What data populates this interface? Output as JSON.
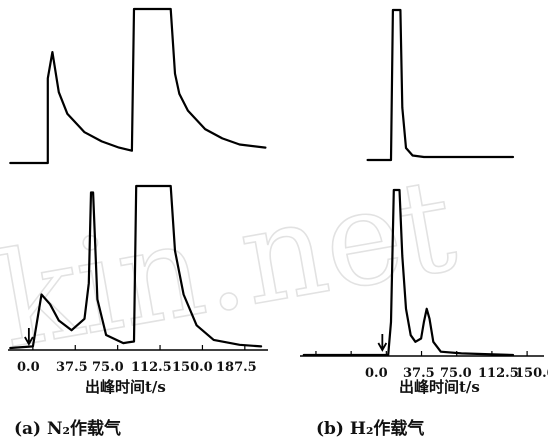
{
  "watermark": "kin.net",
  "chart_data": [
    {
      "type": "line",
      "panel": "a",
      "caption": "(a)   N₂作载气",
      "xlabel": "出峰时间t/s",
      "xticks": [
        "0.0",
        "37.5",
        "75.0",
        "112.5",
        "150.0",
        "187.5"
      ],
      "tick_values": [
        0,
        37.5,
        75,
        112.5,
        150,
        187.5
      ],
      "xlim": [
        -22,
        208
      ],
      "injection_marker_at": 0,
      "grid": false,
      "traces": [
        {
          "position": "top",
          "points": [
            [
              -20,
              0
            ],
            [
              13.2,
              0
            ],
            [
              13.2,
              0.55
            ],
            [
              17.3,
              0.72
            ],
            [
              22.9,
              0.46
            ],
            [
              30.5,
              0.32
            ],
            [
              45.7,
              0.2
            ],
            [
              60.9,
              0.14
            ],
            [
              76.2,
              0.1
            ],
            [
              87.6,
              0.08
            ],
            [
              89.5,
              1
            ],
            [
              121.9,
              1
            ],
            [
              125.7,
              0.58
            ],
            [
              129.5,
              0.45
            ],
            [
              137.1,
              0.34
            ],
            [
              152.4,
              0.22
            ],
            [
              167.6,
              0.16
            ],
            [
              182.9,
              0.12
            ],
            [
              205.7,
              0.1
            ]
          ]
        },
        {
          "position": "bottom",
          "points": [
            [
              -20,
              0
            ],
            [
              0,
              0.01
            ],
            [
              7.6,
              0.33
            ],
            [
              15.2,
              0.27
            ],
            [
              22.9,
              0.17
            ],
            [
              34.3,
              0.11
            ],
            [
              45.7,
              0.18
            ],
            [
              49.5,
              0.4
            ],
            [
              51.4,
              0.96
            ],
            [
              53.3,
              0.96
            ],
            [
              57.1,
              0.3
            ],
            [
              64.8,
              0.08
            ],
            [
              80,
              0.03
            ],
            [
              89.5,
              0.04
            ],
            [
              91.4,
              1
            ],
            [
              121.9,
              1
            ],
            [
              125.7,
              0.6
            ],
            [
              133.3,
              0.33
            ],
            [
              144.8,
              0.14
            ],
            [
              160,
              0.05
            ],
            [
              182.9,
              0.02
            ],
            [
              201.9,
              0.01
            ]
          ]
        }
      ]
    },
    {
      "type": "line",
      "panel": "b",
      "caption": "(b)   H₂作载气",
      "xlabel": "出峰时间t/s",
      "xticks": [
        "0.0",
        "37.5",
        "75.0",
        "112.5",
        "150.0"
      ],
      "tick_values": [
        0,
        37.5,
        75,
        112.5,
        150
      ],
      "xlim": [
        -92,
        168
      ],
      "injection_marker_at": 0,
      "grid": false,
      "traces": [
        {
          "position": "top",
          "points": [
            [
              -20,
              0
            ],
            [
              5,
              0
            ],
            [
              7,
              1
            ],
            [
              15,
              1
            ],
            [
              17,
              0.35
            ],
            [
              21,
              0.08
            ],
            [
              28,
              0.03
            ],
            [
              40,
              0.02
            ],
            [
              80,
              0.02
            ],
            [
              135,
              0.02
            ]
          ]
        },
        {
          "position": "bottom",
          "points": [
            [
              -88,
              0
            ],
            [
              2,
              0
            ],
            [
              5,
              0.2
            ],
            [
              8,
              1
            ],
            [
              14,
              1
            ],
            [
              17,
              0.6
            ],
            [
              21,
              0.28
            ],
            [
              26,
              0.12
            ],
            [
              31,
              0.08
            ],
            [
              37,
              0.1
            ],
            [
              40,
              0.2
            ],
            [
              43,
              0.28
            ],
            [
              46,
              0.22
            ],
            [
              50,
              0.08
            ],
            [
              58,
              0.02
            ],
            [
              80,
              0.01
            ],
            [
              135,
              0
            ]
          ]
        }
      ]
    }
  ]
}
